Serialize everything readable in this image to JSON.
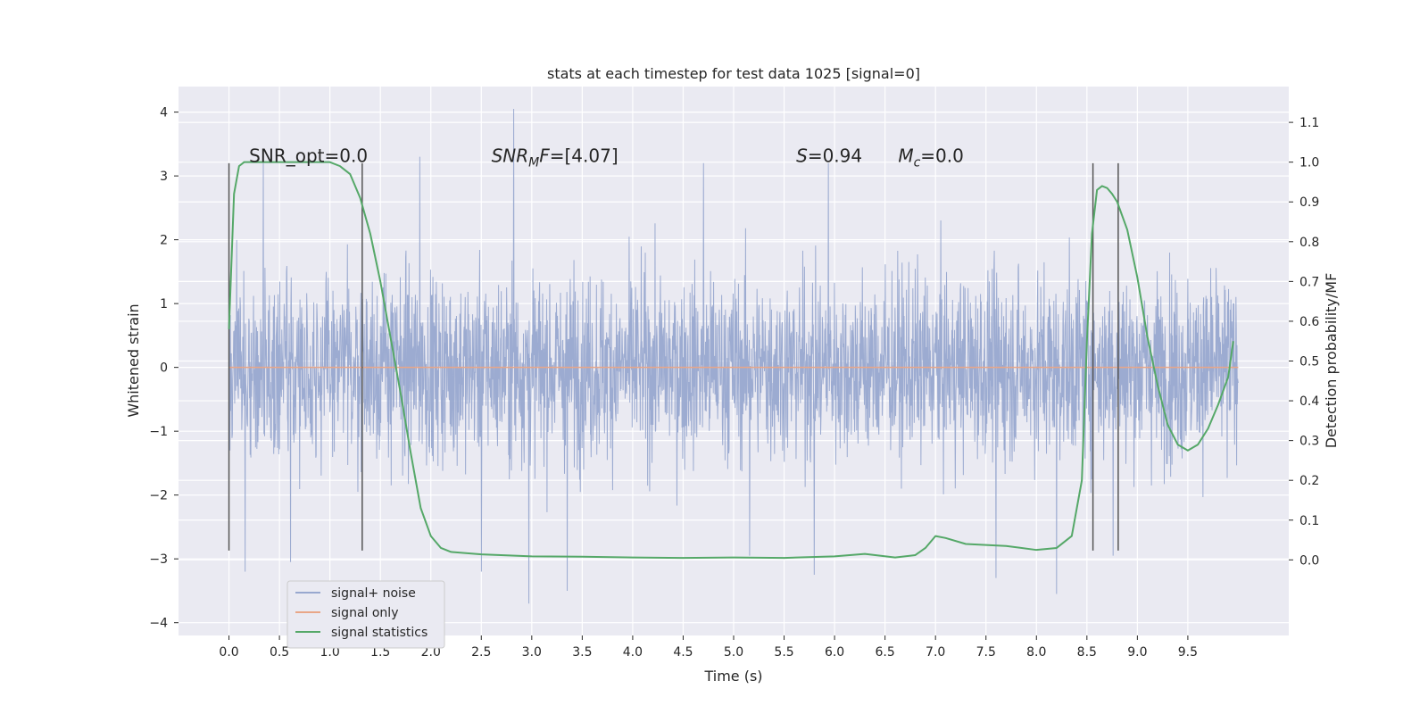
{
  "chart_data": {
    "type": "line",
    "title": "stats at each timestep for test data 1025 [signal=0]",
    "xlabel": "Time (s)",
    "ylabel_left": "Whitened strain",
    "ylabel_right": "Detection probability/MF",
    "xlim": [
      -0.5,
      10.5
    ],
    "ylim_left": [
      -4.2,
      4.4
    ],
    "ylim_right": [
      -0.19,
      1.19
    ],
    "x_ticks": [
      0.0,
      0.5,
      1.0,
      1.5,
      2.0,
      2.5,
      3.0,
      3.5,
      4.0,
      4.5,
      5.0,
      5.5,
      6.0,
      6.5,
      7.0,
      7.5,
      8.0,
      8.5,
      9.0,
      9.5
    ],
    "x_tick_labels": [
      "0.0",
      "0.5",
      "1.0",
      "1.5",
      "2.0",
      "2.5",
      "3.0",
      "3.5",
      "4.0",
      "4.5",
      "5.0",
      "5.5",
      "6.0",
      "6.5",
      "7.0",
      "7.5",
      "8.0",
      "8.5",
      "9.0",
      "9.5"
    ],
    "y_left_ticks": [
      -4,
      -3,
      -2,
      -1,
      0,
      1,
      2,
      3,
      4
    ],
    "y_left_tick_labels": [
      "−4",
      "−3",
      "−2",
      "−1",
      "0",
      "1",
      "2",
      "3",
      "4"
    ],
    "y_right_ticks": [
      0.0,
      0.1,
      0.2,
      0.3,
      0.4,
      0.5,
      0.6,
      0.7,
      0.8,
      0.9,
      1.0,
      1.1
    ],
    "y_right_tick_labels": [
      "0.0",
      "0.1",
      "0.2",
      "0.3",
      "0.4",
      "0.5",
      "0.6",
      "0.7",
      "0.8",
      "0.9",
      "1.0",
      "1.1"
    ],
    "grid": true,
    "legend_position": "lower-left",
    "series": [
      {
        "name": "signal+ noise",
        "color": "#98a8cf",
        "axis": "left",
        "x_range": [
          0.0,
          10.0
        ],
        "envelope_typical": [
          -1.9,
          1.9
        ],
        "peaks": [
          {
            "x": 2.82,
            "y": 4.05
          },
          {
            "x": 1.89,
            "y": 3.3
          },
          {
            "x": 5.94,
            "y": 3.2
          },
          {
            "x": 4.7,
            "y": 3.2
          },
          {
            "x": 0.34,
            "y": 3.2
          },
          {
            "x": 3.35,
            "y": 3.15
          },
          {
            "x": 0.61,
            "y": -3.05
          },
          {
            "x": 0.16,
            "y": -3.2
          },
          {
            "x": 2.97,
            "y": -3.7
          },
          {
            "x": 3.35,
            "y": -3.5
          },
          {
            "x": 2.5,
            "y": -3.2
          },
          {
            "x": 5.8,
            "y": -3.25
          },
          {
            "x": 8.2,
            "y": -3.55
          },
          {
            "x": 7.6,
            "y": -3.3
          },
          {
            "x": 8.76,
            "y": -2.95
          },
          {
            "x": 5.16,
            "y": -2.95
          }
        ]
      },
      {
        "name": "signal only",
        "color": "#e9a687",
        "axis": "left",
        "x": [
          0.0,
          10.0
        ],
        "y": [
          0.0,
          0.0
        ]
      },
      {
        "name": "signal statistics",
        "color": "#55a868",
        "axis": "right",
        "x": [
          0.0,
          0.05,
          0.1,
          0.15,
          0.2,
          0.3,
          0.5,
          0.8,
          1.0,
          1.1,
          1.2,
          1.3,
          1.4,
          1.5,
          1.6,
          1.7,
          1.8,
          1.9,
          2.0,
          2.1,
          2.2,
          2.5,
          3.0,
          3.5,
          4.0,
          4.5,
          5.0,
          5.5,
          6.0,
          6.3,
          6.6,
          6.8,
          6.9,
          7.0,
          7.1,
          7.3,
          7.7,
          8.0,
          8.2,
          8.35,
          8.45,
          8.5,
          8.55,
          8.6,
          8.65,
          8.7,
          8.75,
          8.8,
          8.9,
          9.0,
          9.1,
          9.2,
          9.3,
          9.4,
          9.5,
          9.6,
          9.7,
          9.8,
          9.9,
          9.95
        ],
        "y": [
          0.58,
          0.92,
          0.99,
          1.0,
          1.0,
          1.0,
          1.0,
          1.0,
          1.0,
          0.99,
          0.97,
          0.91,
          0.82,
          0.7,
          0.56,
          0.42,
          0.27,
          0.13,
          0.06,
          0.03,
          0.02,
          0.014,
          0.009,
          0.008,
          0.006,
          0.005,
          0.006,
          0.005,
          0.009,
          0.015,
          0.006,
          0.012,
          0.03,
          0.06,
          0.055,
          0.04,
          0.035,
          0.025,
          0.03,
          0.06,
          0.2,
          0.55,
          0.82,
          0.93,
          0.94,
          0.935,
          0.92,
          0.9,
          0.83,
          0.71,
          0.56,
          0.44,
          0.34,
          0.29,
          0.275,
          0.29,
          0.33,
          0.39,
          0.46,
          0.55
        ]
      }
    ],
    "vertical_lines": [
      0.0,
      1.32,
      8.56,
      8.81
    ],
    "vertical_line_range": [
      -2.87,
      3.2
    ],
    "annotations": [
      {
        "text": "SNR_opt=0.0",
        "x": 0.2,
        "y": 3.22
      },
      {
        "text": "SNR",
        "sub": "M",
        "suffix": "F=[4.07]",
        "italic": true,
        "x": 2.6,
        "y": 3.22
      },
      {
        "text": "S",
        "suffix": "=0.94",
        "italic": true,
        "x": 5.62,
        "y": 3.22
      },
      {
        "text": "M",
        "sub": "c",
        "suffix": "=0.0",
        "italic": true,
        "x": 6.63,
        "y": 3.22
      }
    ]
  },
  "colors": {
    "plot_bg": "#eaeaf2",
    "grid": "#ffffff",
    "text": "#262626",
    "vline": "#555555"
  }
}
